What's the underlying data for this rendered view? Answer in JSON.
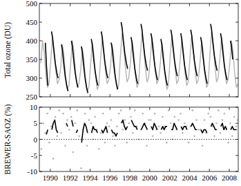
{
  "chart_data": [
    {
      "type": "line",
      "y_label": "Total ozone (DU)",
      "xlim": [
        1988.9,
        2008.9
      ],
      "xticks": [
        1990,
        1992,
        1994,
        1996,
        1998,
        2000,
        2002,
        2004,
        2006,
        2008
      ],
      "ylim": [
        250,
        500
      ],
      "yticks": [
        250,
        300,
        350,
        400,
        450,
        500
      ],
      "tick_labels": "y",
      "grid": false,
      "series": [
        {
          "color": "#b4b4b4",
          "x": [
            1989.05,
            1989.22,
            1989.38,
            1989.55,
            1989.72,
            1989.88,
            1990.05,
            1990.22,
            1990.38,
            1990.55,
            1990.72,
            1990.88,
            1991.05,
            1991.22,
            1991.38,
            1991.55,
            1991.72,
            1991.88,
            1992.05,
            1992.22,
            1992.38,
            1992.55,
            1992.72,
            1992.88,
            1993.05,
            1993.22,
            1993.38,
            1993.55,
            1993.72,
            1993.88,
            1994.05,
            1994.22,
            1994.38,
            1994.55,
            1994.72,
            1994.88,
            1995.05,
            1995.22,
            1995.38,
            1995.55,
            1995.72,
            1995.88,
            1996.05,
            1996.22,
            1996.38,
            1996.55,
            1996.72,
            1996.88,
            1997.05,
            1997.22,
            1997.38,
            1997.55,
            1997.72,
            1997.88,
            1998.05,
            1998.22,
            1998.38,
            1998.55,
            1998.72,
            1998.88,
            1999.05,
            1999.22,
            1999.38,
            1999.55,
            1999.72,
            1999.88,
            2000.05,
            2000.22,
            2000.38,
            2000.55,
            2000.72,
            2000.88,
            2001.05,
            2001.22,
            2001.38,
            2001.55,
            2001.72,
            2001.88,
            2002.05,
            2002.22,
            2002.38,
            2002.55,
            2002.72,
            2002.88,
            2003.05,
            2003.22,
            2003.38,
            2003.55,
            2003.72,
            2003.88,
            2004.05,
            2004.22,
            2004.38,
            2004.55,
            2004.72,
            2004.88,
            2005.05,
            2005.22,
            2005.38,
            2005.55,
            2005.72,
            2005.88,
            2006.05,
            2006.22,
            2006.38,
            2006.55,
            2006.72,
            2006.88,
            2007.05,
            2007.22,
            2007.38,
            2007.55,
            2007.72,
            2007.88,
            2008.05,
            2008.22,
            2008.38,
            2008.55,
            2008.72,
            2008.88
          ],
          "values": [
            340,
            400,
            370,
            310,
            275,
            285,
            350,
            410,
            380,
            320,
            285,
            295,
            330,
            390,
            360,
            300,
            270,
            280,
            340,
            400,
            370,
            310,
            275,
            285,
            320,
            380,
            350,
            290,
            265,
            275,
            335,
            395,
            365,
            305,
            270,
            280,
            350,
            410,
            380,
            320,
            285,
            295,
            330,
            390,
            360,
            300,
            270,
            280,
            360,
            420,
            390,
            330,
            290,
            300,
            340,
            400,
            370,
            310,
            275,
            285,
            360,
            420,
            390,
            330,
            290,
            300,
            350,
            410,
            380,
            320,
            285,
            295,
            335,
            395,
            365,
            305,
            270,
            280,
            355,
            415,
            385,
            325,
            285,
            295,
            345,
            405,
            375,
            315,
            280,
            290,
            355,
            415,
            385,
            325,
            285,
            295,
            340,
            400,
            370,
            310,
            275,
            285,
            365,
            425,
            395,
            335,
            290,
            300,
            350,
            410,
            380,
            320,
            285,
            295,
            340,
            400,
            370,
            310,
            275,
            285
          ]
        },
        {
          "color": "#000000",
          "x": [
            1989.5,
            1989.62,
            1989.75,
            1989.9,
            1990.12,
            1990.22,
            1990.35,
            1990.5,
            1990.65,
            1990.78,
            1990.9,
            1991.12,
            1991.22,
            1991.35,
            1991.5,
            1991.65,
            1991.78,
            1991.9,
            1992.12,
            1992.22,
            1992.35,
            1992.5,
            1992.65,
            1992.78,
            1992.9,
            1993.12,
            1993.22,
            1993.35,
            1993.5,
            1993.65,
            1993.78,
            1993.9,
            1994.12,
            1994.22,
            1994.35,
            1994.5,
            1994.65,
            1994.78,
            1994.9,
            1995.12,
            1995.22,
            1995.35,
            1995.5,
            1995.65,
            1995.78,
            1995.9,
            1996.12,
            1996.22,
            1996.35,
            1996.5,
            1996.65,
            1996.78,
            1996.9,
            1997.12,
            1997.22,
            1997.35,
            1997.5,
            1997.65,
            1997.78,
            1997.9,
            1998.12,
            1998.22,
            1998.35,
            1998.5,
            1998.65,
            1998.78,
            1998.9,
            1999.12,
            1999.22,
            1999.35,
            1999.5,
            1999.65,
            1999.78,
            1999.9,
            2000.12,
            2000.22,
            2000.35,
            2000.5,
            2000.65,
            2000.78,
            2000.9,
            2001.12,
            2001.22,
            2001.35,
            2001.5,
            2001.65,
            2001.78,
            2001.9,
            2002.12,
            2002.22,
            2002.35,
            2002.5,
            2002.65,
            2002.78,
            2002.9,
            2003.12,
            2003.22,
            2003.35,
            2003.5,
            2003.65,
            2003.78,
            2003.9,
            2004.12,
            2004.22,
            2004.35,
            2004.5,
            2004.65,
            2004.78,
            2004.9,
            2005.12,
            2005.22,
            2005.35,
            2005.5,
            2005.65,
            2005.78,
            2005.9,
            2006.12,
            2006.22,
            2006.35,
            2006.5,
            2006.65,
            2006.78,
            2006.9,
            2007.12,
            2007.22,
            2007.35,
            2007.5,
            2007.65,
            2007.78,
            2007.9,
            2008.12,
            2008.22,
            2008.35
          ],
          "values": [
            395,
            330,
            280,
            null,
            425,
            410,
            375,
            340,
            315,
            300,
            null,
            390,
            375,
            340,
            305,
            280,
            265,
            null,
            400,
            385,
            350,
            315,
            290,
            275,
            null,
            385,
            370,
            335,
            300,
            275,
            260,
            null,
            405,
            390,
            355,
            320,
            295,
            280,
            null,
            425,
            410,
            375,
            340,
            315,
            300,
            null,
            395,
            380,
            345,
            310,
            285,
            270,
            null,
            450,
            435,
            400,
            365,
            340,
            325,
            null,
            410,
            395,
            360,
            325,
            300,
            285,
            null,
            445,
            430,
            395,
            360,
            335,
            320,
            null,
            420,
            405,
            370,
            335,
            310,
            295,
            null,
            405,
            390,
            355,
            320,
            295,
            280,
            null,
            430,
            415,
            380,
            345,
            320,
            305,
            null,
            420,
            405,
            370,
            335,
            310,
            295,
            null,
            430,
            415,
            380,
            345,
            320,
            305,
            null,
            410,
            395,
            360,
            325,
            300,
            285,
            null,
            445,
            430,
            395,
            360,
            335,
            320,
            null,
            420,
            405,
            370,
            335,
            310,
            295,
            null,
            400,
            385,
            350
          ]
        }
      ]
    },
    {
      "type": "scatter",
      "y_label": "BREWER-SAOZ (%)",
      "xlim": [
        1988.9,
        2008.9
      ],
      "xticks": [
        1990,
        1992,
        1994,
        1996,
        1998,
        2000,
        2002,
        2004,
        2006,
        2008
      ],
      "ylim": [
        -10,
        10
      ],
      "yticks": [
        -10,
        -5,
        0,
        5,
        10
      ],
      "grid": false,
      "series": [
        {
          "type": "scatter",
          "color": "#b4b4b4",
          "marker": "circle",
          "x": [
            1989.1,
            1989.3,
            1989.5,
            1989.7,
            1989.9,
            1990.1,
            1990.3,
            1990.5,
            1990.7,
            1990.9,
            1991.1,
            1991.3,
            1991.5,
            1991.7,
            1991.9,
            1992.1,
            1992.3,
            1992.5,
            1992.7,
            1992.9,
            1993.1,
            1993.3,
            1993.5,
            1993.7,
            1993.9,
            1994.1,
            1994.3,
            1994.5,
            1994.7,
            1994.9,
            1995.1,
            1995.3,
            1995.5,
            1995.7,
            1995.9,
            1996.1,
            1996.3,
            1996.5,
            1996.7,
            1996.9,
            1997.1,
            1997.3,
            1997.5,
            1997.7,
            1997.9,
            1998.1,
            1998.3,
            1998.5,
            1998.7,
            1998.9,
            1999.1,
            1999.3,
            1999.5,
            1999.7,
            1999.9,
            2000.1,
            2000.3,
            2000.5,
            2000.7,
            2000.9,
            2001.1,
            2001.3,
            2001.5,
            2001.7,
            2001.9,
            2002.1,
            2002.3,
            2002.5,
            2002.7,
            2002.9,
            2003.1,
            2003.3,
            2003.5,
            2003.7,
            2003.9,
            2004.1,
            2004.3,
            2004.5,
            2004.7,
            2004.9,
            2005.1,
            2005.3,
            2005.5,
            2005.7,
            2005.9,
            2006.1,
            2006.3,
            2006.5,
            2006.7,
            2006.9,
            2007.1,
            2007.3,
            2007.5,
            2007.7,
            2007.9,
            2008.1,
            2008.3,
            2008.5,
            2008.7,
            2008.85
          ],
          "values": [
            -3,
            5,
            2,
            8,
            -1,
            4,
            -6,
            7,
            1,
            9,
            2,
            8,
            -2,
            6,
            3,
            7,
            -4,
            5,
            9,
            1,
            -9,
            3,
            8,
            -2,
            6,
            5,
            0,
            7,
            3,
            -3,
            2,
            8,
            -1,
            5,
            4,
            6,
            1,
            -2,
            4,
            8,
            9,
            3,
            6,
            -1,
            5,
            7,
            2,
            9,
            4,
            0,
            3,
            8,
            5,
            -2,
            6,
            6,
            1,
            8,
            3,
            4,
            2,
            7,
            4,
            -1,
            9,
            5,
            0,
            7,
            3,
            6,
            8,
            2,
            5,
            4,
            -1,
            4,
            9,
            1,
            6,
            3,
            3,
            -2,
            6,
            2,
            8,
            7,
            4,
            1,
            5,
            9,
            2,
            6,
            8,
            3,
            -1,
            5,
            1,
            7,
            4,
            6
          ]
        },
        {
          "type": "line",
          "color": "#000000",
          "line_style": "dotted",
          "x": [
            1988.9,
            2008.9
          ],
          "values": [
            0,
            0
          ]
        },
        {
          "type": "line",
          "color": "#000000",
          "x": [
            1989.6,
            1989.75,
            1989.9,
            1990.15,
            1990.3,
            1990.45,
            1990.6,
            1990.75,
            1990.9,
            1991.15,
            1991.3,
            1991.45,
            1991.6,
            1991.75,
            1991.9,
            1992.15,
            1992.3,
            1992.45,
            1992.6,
            1992.75,
            1992.9,
            1993.15,
            1993.3,
            1993.45,
            1993.6,
            1993.75,
            1993.9,
            1994.15,
            1994.3,
            1994.45,
            1994.6,
            1994.75,
            1994.9,
            1995.15,
            1995.3,
            1995.45,
            1995.6,
            1995.75,
            1995.9,
            1996.15,
            1996.3,
            1996.45,
            1996.6,
            1996.75,
            1996.9,
            1997.15,
            1997.3,
            1997.45,
            1997.6,
            1997.75,
            1997.9,
            1998.15,
            1998.3,
            1998.45,
            1998.6,
            1998.75,
            1998.9,
            1999.15,
            1999.3,
            1999.45,
            1999.6,
            1999.75,
            1999.9,
            2000.15,
            2000.3,
            2000.45,
            2000.6,
            2000.75,
            2000.9,
            2001.15,
            2001.3,
            2001.45,
            2001.6,
            2001.75,
            2001.9,
            2002.15,
            2002.3,
            2002.45,
            2002.6,
            2002.75,
            2002.9,
            2003.15,
            2003.3,
            2003.45,
            2003.6,
            2003.75,
            2003.9,
            2004.15,
            2004.3,
            2004.45,
            2004.6,
            2004.75,
            2004.9,
            2005.15,
            2005.3,
            2005.45,
            2005.6,
            2005.75,
            2005.9,
            2006.15,
            2006.3,
            2006.45,
            2006.6,
            2006.75,
            2006.9,
            2007.15,
            2007.3,
            2007.45,
            2007.6,
            2007.75,
            2007.9,
            2008.15,
            2008.3,
            2008.45,
            2008.6,
            2008.75
          ],
          "values": [
            1.5,
            3,
            null,
            3,
            5,
            6,
            3,
            2,
            null,
            null,
            null,
            null,
            5,
            4,
            null,
            6,
            4,
            null,
            2,
            3,
            null,
            -1,
            3,
            5,
            4,
            2,
            null,
            2,
            4,
            3,
            3,
            2,
            null,
            3,
            2,
            3,
            4,
            2,
            null,
            3,
            2,
            2,
            1,
            2,
            null,
            5,
            6,
            4,
            3,
            4,
            null,
            6,
            5,
            4,
            4,
            3,
            null,
            3,
            4,
            5,
            4,
            3,
            null,
            4,
            3,
            5,
            4,
            3,
            null,
            3,
            4,
            3,
            4,
            4,
            null,
            3,
            3,
            5,
            4,
            3,
            null,
            4,
            3,
            4,
            4,
            3,
            null,
            4,
            5,
            4,
            3,
            3,
            null,
            3,
            2,
            3,
            3,
            2,
            null,
            4,
            5,
            4,
            3,
            3,
            null,
            4,
            5,
            3,
            4,
            3,
            null,
            3,
            4,
            3,
            3,
            3
          ]
        }
      ]
    }
  ]
}
